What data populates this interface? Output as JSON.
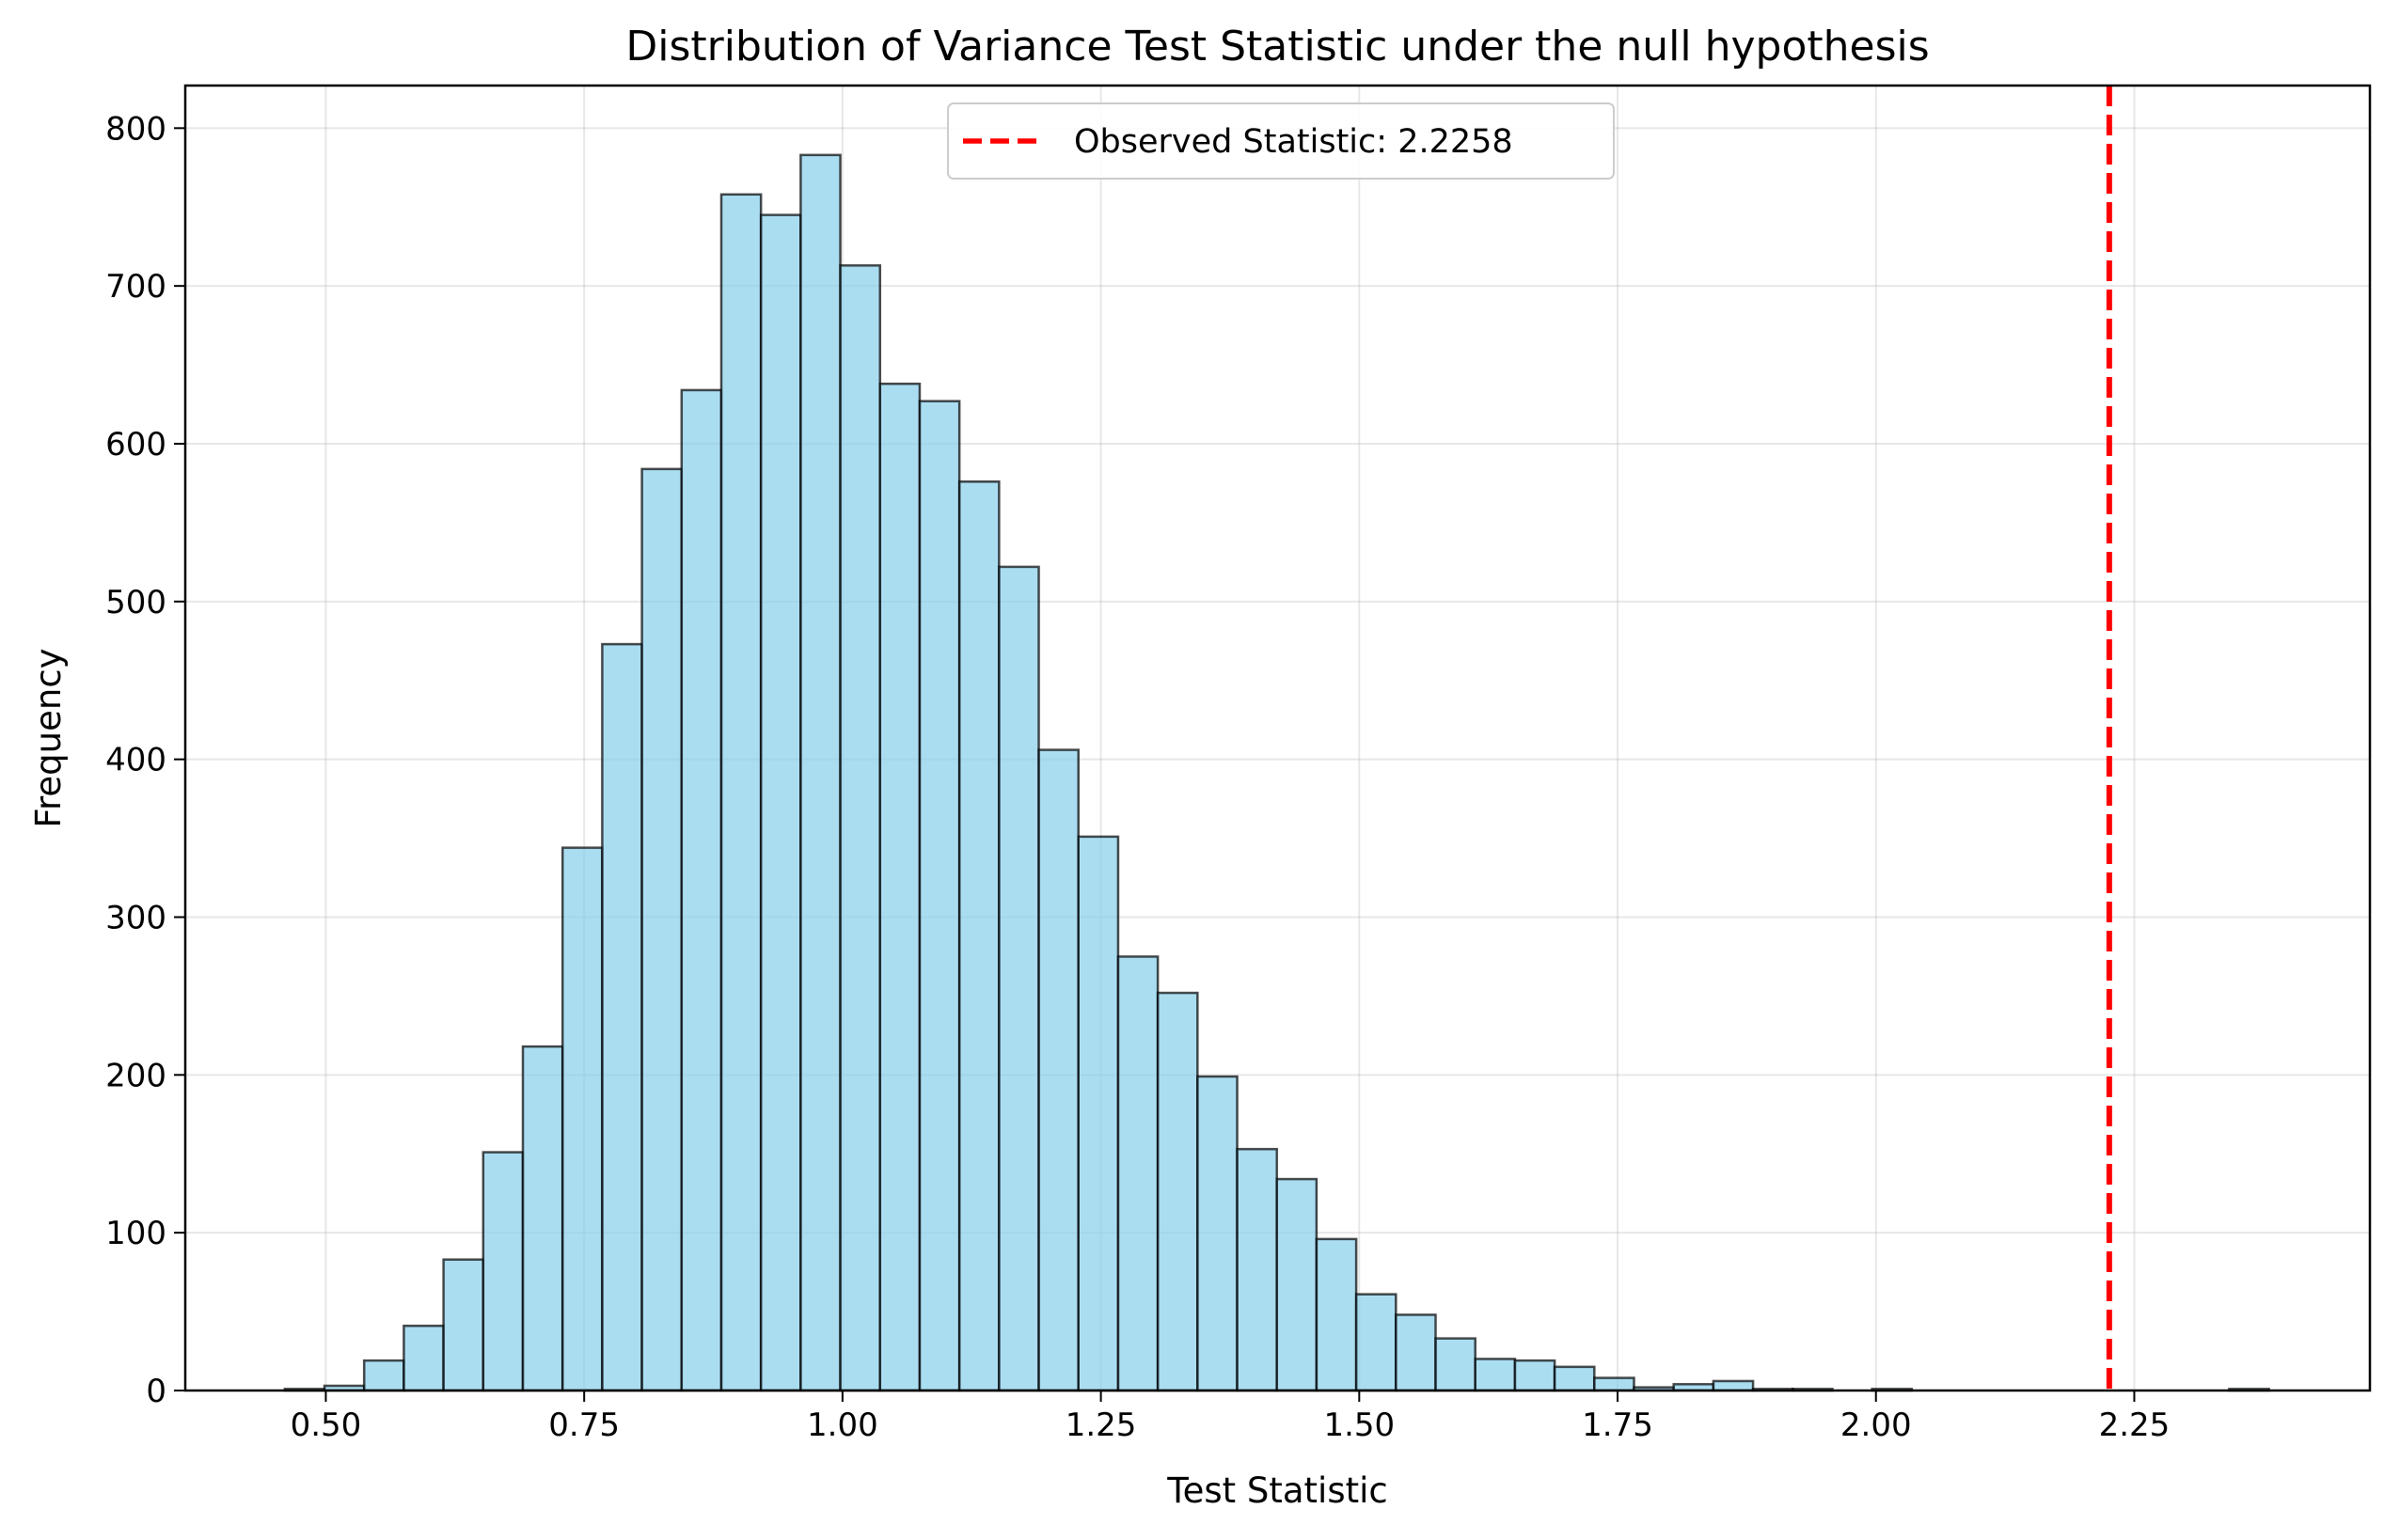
{
  "chart_data": {
    "type": "bar",
    "subtype": "histogram",
    "title": "Distribution of Variance Test Statistic under the null hypothesis",
    "xlabel": "Test Statistic",
    "ylabel": "Frequency",
    "xlim": [
      0.364,
      2.478
    ],
    "ylim": [
      0,
      827
    ],
    "xticks": [
      "0.50",
      "0.75",
      "1.00",
      "1.25",
      "1.50",
      "1.75",
      "2.00",
      "2.25"
    ],
    "yticks": [
      "0",
      "100",
      "200",
      "300",
      "400",
      "500",
      "600",
      "700",
      "800"
    ],
    "grid": true,
    "bin_start": 0.4603,
    "bin_width": 0.0384,
    "values": [
      1,
      3,
      19,
      41,
      83,
      151,
      218,
      344,
      473,
      584,
      634,
      758,
      745,
      783,
      713,
      638,
      627,
      576,
      522,
      406,
      351,
      275,
      252,
      199,
      153,
      134,
      96,
      61,
      48,
      33,
      20,
      19,
      15,
      8,
      2,
      4,
      6,
      1,
      1,
      0,
      1,
      0,
      0,
      0,
      0,
      0,
      0,
      0,
      0,
      1
    ],
    "bar_color": "#87CEEB",
    "bar_edge_color": "#000000",
    "reference_line": {
      "x": 2.2258,
      "color": "#FF0000",
      "style": "dashed",
      "label": "Observed Statistic: 2.2258"
    },
    "legend": {
      "position": "upper-center",
      "entries": [
        "Observed Statistic: 2.2258"
      ]
    }
  }
}
